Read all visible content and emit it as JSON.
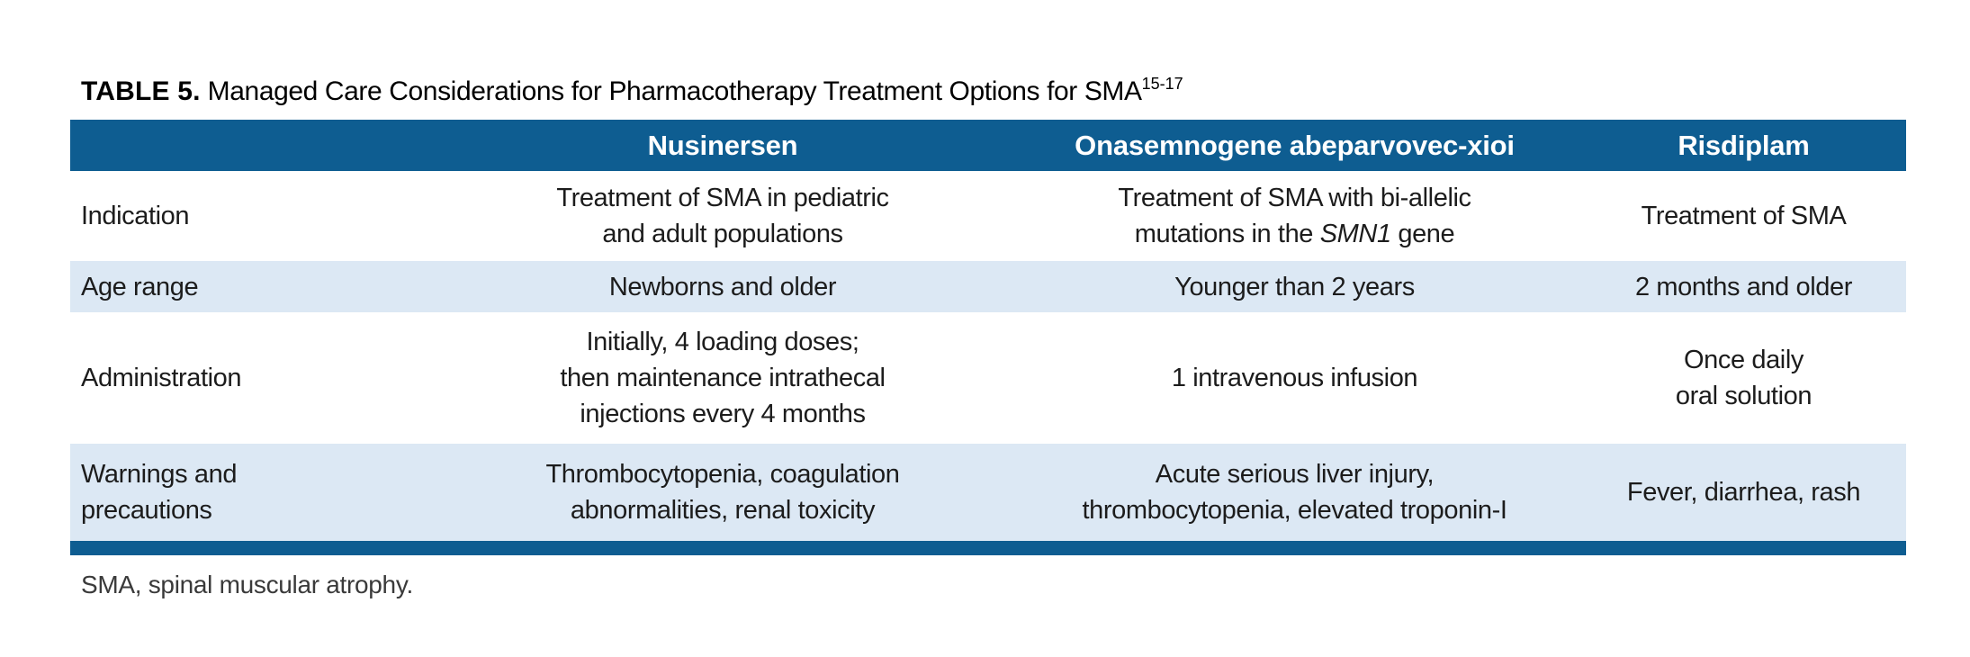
{
  "title": {
    "label": "TABLE 5.",
    "text": " Managed Care Considerations for Pharmacotherapy Treatment Options for SMA",
    "superscript": "15-17"
  },
  "colors": {
    "header_bg": "#0E5D91",
    "alt_row_bg": "#DCE8F4",
    "rule_color": "#0E5D91"
  },
  "table": {
    "header": {
      "col_label": "",
      "col_nusinersen": "Nusinersen",
      "col_onasemnogene": "Onasemnogene abeparvovec-xioi",
      "col_risdiplam": "Risdiplam"
    },
    "rows": {
      "indication": {
        "label": [
          "Indication"
        ],
        "nusinersen": [
          "Treatment of SMA in pediatric",
          "and adult populations"
        ],
        "onasemnogene_line1": "Treatment of SMA with bi-allelic",
        "onasemnogene_line2_prefix": "mutations in the ",
        "onasemnogene_gene_italic": "SMN1",
        "onasemnogene_line2_suffix": " gene",
        "risdiplam": [
          "Treatment of SMA"
        ]
      },
      "age_range": {
        "label": [
          "Age range"
        ],
        "nusinersen": [
          "Newborns and older"
        ],
        "onasemnogene": [
          "Younger than 2 years"
        ],
        "risdiplam": [
          "2 months and older"
        ]
      },
      "administration": {
        "label": [
          "Administration"
        ],
        "nusinersen": [
          "Initially, 4 loading doses;",
          "then maintenance intrathecal",
          "injections every 4 months"
        ],
        "onasemnogene": [
          "1 intravenous infusion"
        ],
        "risdiplam": [
          "Once daily",
          "oral solution"
        ]
      },
      "warnings": {
        "label": [
          "Warnings and",
          "precautions"
        ],
        "nusinersen": [
          "Thrombocytopenia, coagulation",
          "abnormalities, renal toxicity"
        ],
        "onasemnogene": [
          "Acute serious liver injury,",
          "thrombocytopenia, elevated troponin-I"
        ],
        "risdiplam": [
          "Fever, diarrhea, rash"
        ]
      }
    }
  },
  "footnote": "SMA, spinal muscular atrophy."
}
